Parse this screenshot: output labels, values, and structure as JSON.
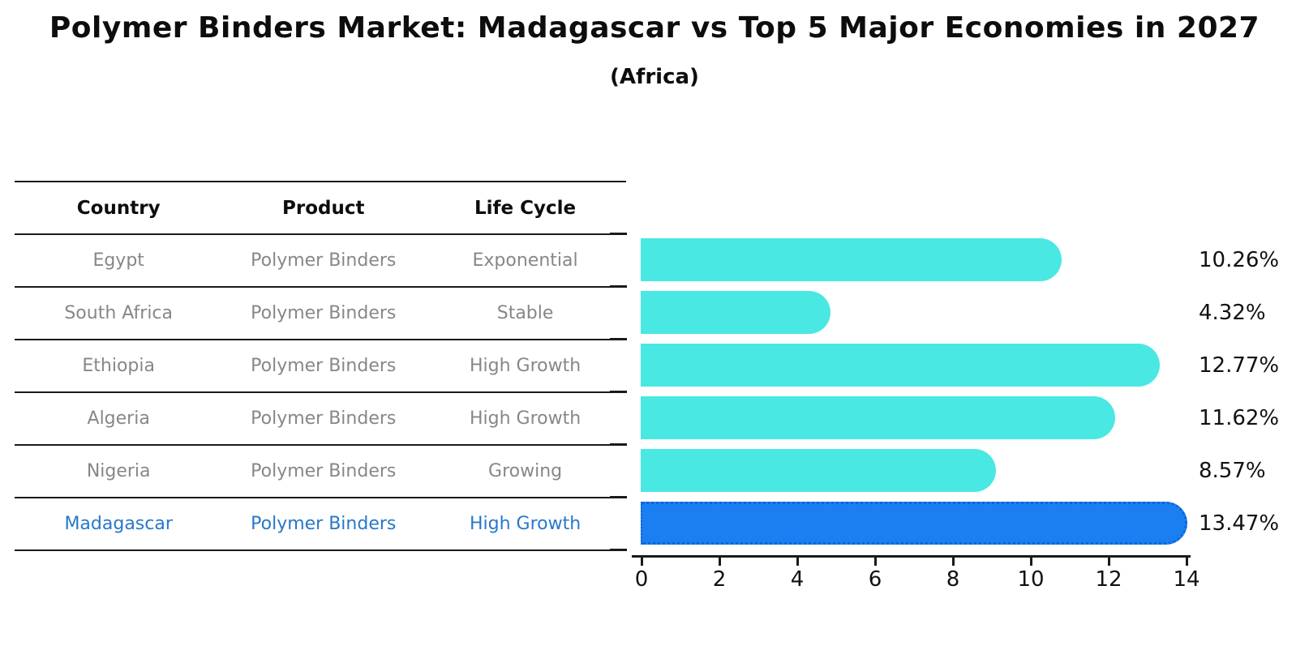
{
  "title": "Polymer Binders Market: Madagascar vs Top 5 Major Economies in 2027",
  "subtitle": "(Africa)",
  "table": {
    "headers": [
      "Country",
      "Product",
      "Life Cycle"
    ],
    "rows": [
      {
        "country": "Egypt",
        "product": "Polymer Binders",
        "life_cycle": "Exponential",
        "highlight": false
      },
      {
        "country": "South Africa",
        "product": "Polymer Binders",
        "life_cycle": "Stable",
        "highlight": false
      },
      {
        "country": "Ethiopia",
        "product": "Polymer Binders",
        "life_cycle": "High Growth",
        "highlight": false
      },
      {
        "country": "Algeria",
        "product": "Polymer Binders",
        "life_cycle": "High Growth",
        "highlight": false
      },
      {
        "country": "Nigeria",
        "product": "Polymer Binders",
        "life_cycle": "Growing",
        "highlight": false
      },
      {
        "country": "Madagascar",
        "product": "Polymer Binders",
        "life_cycle": "High Growth",
        "highlight": true
      }
    ]
  },
  "chart_data": {
    "type": "bar",
    "orientation": "horizontal",
    "title": "Polymer Binders Market: Madagascar vs Top 5 Major Economies in 2027 (Africa)",
    "categories": [
      "Egypt",
      "South Africa",
      "Ethiopia",
      "Algeria",
      "Nigeria",
      "Madagascar"
    ],
    "values": [
      10.26,
      4.32,
      12.77,
      11.62,
      8.57,
      13.47
    ],
    "value_labels": [
      "10.26%",
      "4.32%",
      "12.77%",
      "11.62%",
      "8.57%",
      "13.47%"
    ],
    "xlim": [
      0,
      14
    ],
    "xticks": [
      "0",
      "2",
      "4",
      "6",
      "8",
      "10",
      "12",
      "14"
    ],
    "grid": false,
    "legend": false,
    "highlight_index": 5,
    "bar_color": "#49e8e3",
    "highlight_color": "#1b7ff1",
    "highlight_border_color": "#0f63dd",
    "highlight_text_color": "#2878c8"
  },
  "colors": {
    "background": "#ffffff",
    "text_primary": "#0d0d0d",
    "text_muted": "#878787",
    "table_line": "#1a1a1a"
  }
}
